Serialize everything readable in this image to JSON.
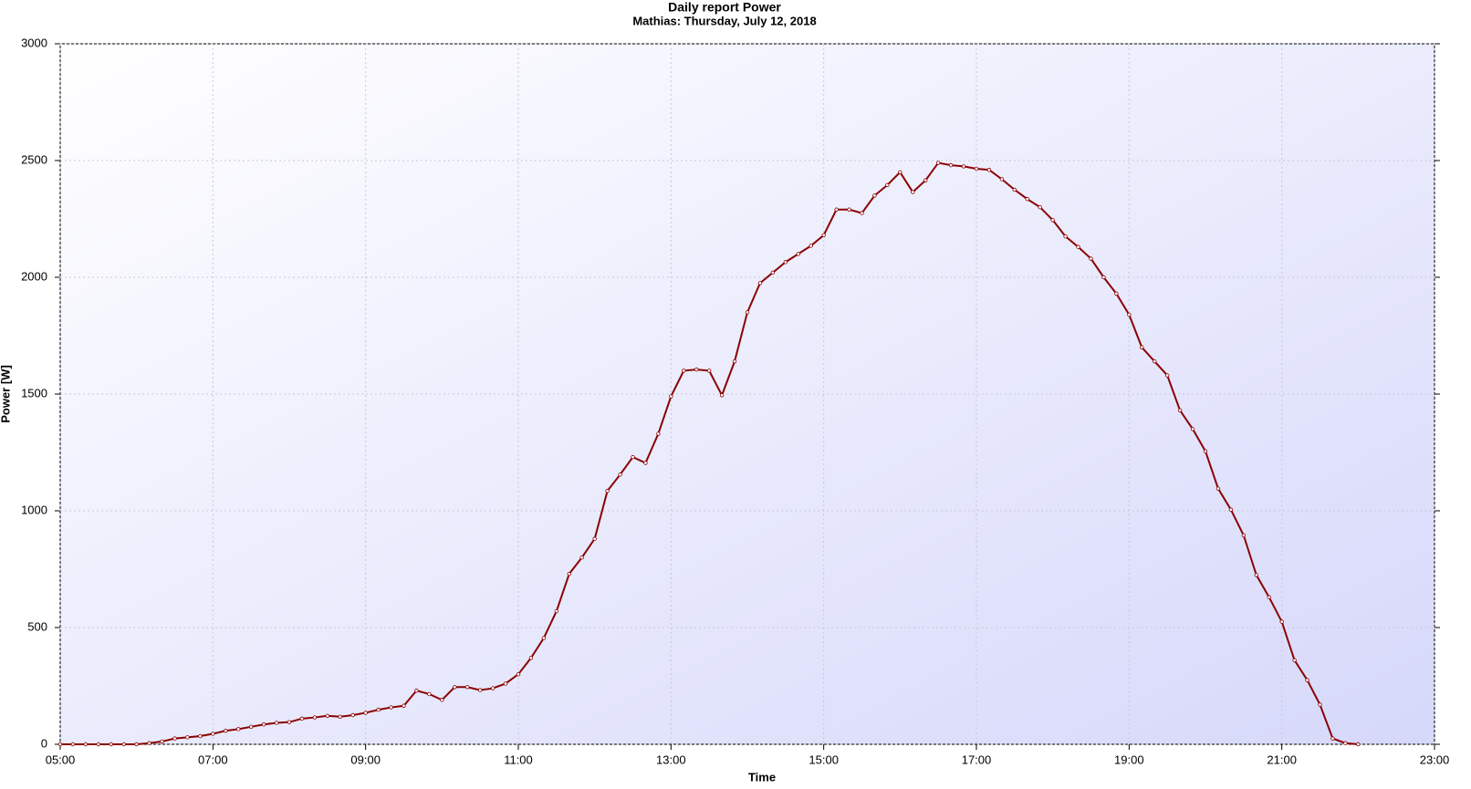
{
  "chart_data": {
    "type": "line",
    "title": "Daily report Power",
    "subtitle": "Mathias: Thursday, July 12, 2018",
    "x_label": "Time",
    "y_label": "Power [W]",
    "x": [
      300,
      310,
      320,
      330,
      340,
      350,
      360,
      370,
      380,
      390,
      400,
      410,
      420,
      430,
      440,
      450,
      460,
      470,
      480,
      490,
      500,
      510,
      520,
      530,
      540,
      550,
      560,
      570,
      580,
      590,
      600,
      610,
      620,
      630,
      640,
      650,
      660,
      670,
      680,
      690,
      700,
      710,
      720,
      730,
      740,
      750,
      760,
      770,
      780,
      790,
      800,
      810,
      820,
      830,
      840,
      850,
      860,
      870,
      880,
      890,
      900,
      910,
      920,
      930,
      940,
      950,
      960,
      970,
      980,
      990,
      1000,
      1010,
      1020,
      1030,
      1040,
      1050,
      1060,
      1070,
      1080,
      1090,
      1100,
      1110,
      1120,
      1130,
      1140,
      1150,
      1160,
      1170,
      1180,
      1190,
      1200,
      1210,
      1220,
      1230,
      1240,
      1250,
      1260,
      1270,
      1280,
      1290,
      1300,
      1310,
      1320
    ],
    "series": [
      {
        "name": "Power",
        "color": "#8b0000",
        "values": [
          0,
          0,
          0,
          0,
          0,
          0,
          0,
          5,
          12,
          25,
          30,
          35,
          45,
          58,
          65,
          75,
          85,
          92,
          95,
          110,
          115,
          122,
          118,
          125,
          135,
          148,
          158,
          165,
          230,
          215,
          190,
          245,
          245,
          232,
          240,
          260,
          300,
          370,
          455,
          570,
          730,
          800,
          880,
          1085,
          1155,
          1230,
          1205,
          1330,
          1490,
          1600,
          1605,
          1600,
          1495,
          1640,
          1850,
          1975,
          2020,
          2065,
          2100,
          2135,
          2180,
          2290,
          2290,
          2275,
          2350,
          2395,
          2450,
          2365,
          2415,
          2490,
          2480,
          2475,
          2465,
          2460,
          2420,
          2375,
          2335,
          2300,
          2245,
          2175,
          2130,
          2080,
          2000,
          1930,
          1840,
          1700,
          1640,
          1580,
          1430,
          1350,
          1255,
          1095,
          1005,
          895,
          725,
          630,
          525,
          360,
          275,
          170,
          25,
          5,
          0
        ]
      }
    ],
    "xlim": [
      300,
      1380
    ],
    "xticks": [
      {
        "value": 300,
        "label": "05:00"
      },
      {
        "value": 420,
        "label": "07:00"
      },
      {
        "value": 540,
        "label": "09:00"
      },
      {
        "value": 660,
        "label": "11:00"
      },
      {
        "value": 780,
        "label": "13:00"
      },
      {
        "value": 900,
        "label": "15:00"
      },
      {
        "value": 1020,
        "label": "17:00"
      },
      {
        "value": 1140,
        "label": "19:00"
      },
      {
        "value": 1260,
        "label": "21:00"
      },
      {
        "value": 1380,
        "label": "23:00"
      }
    ],
    "ylim": [
      0,
      3000
    ],
    "yticks": [
      0,
      500,
      1000,
      1500,
      2000,
      2500,
      3000
    ],
    "grid": true
  }
}
